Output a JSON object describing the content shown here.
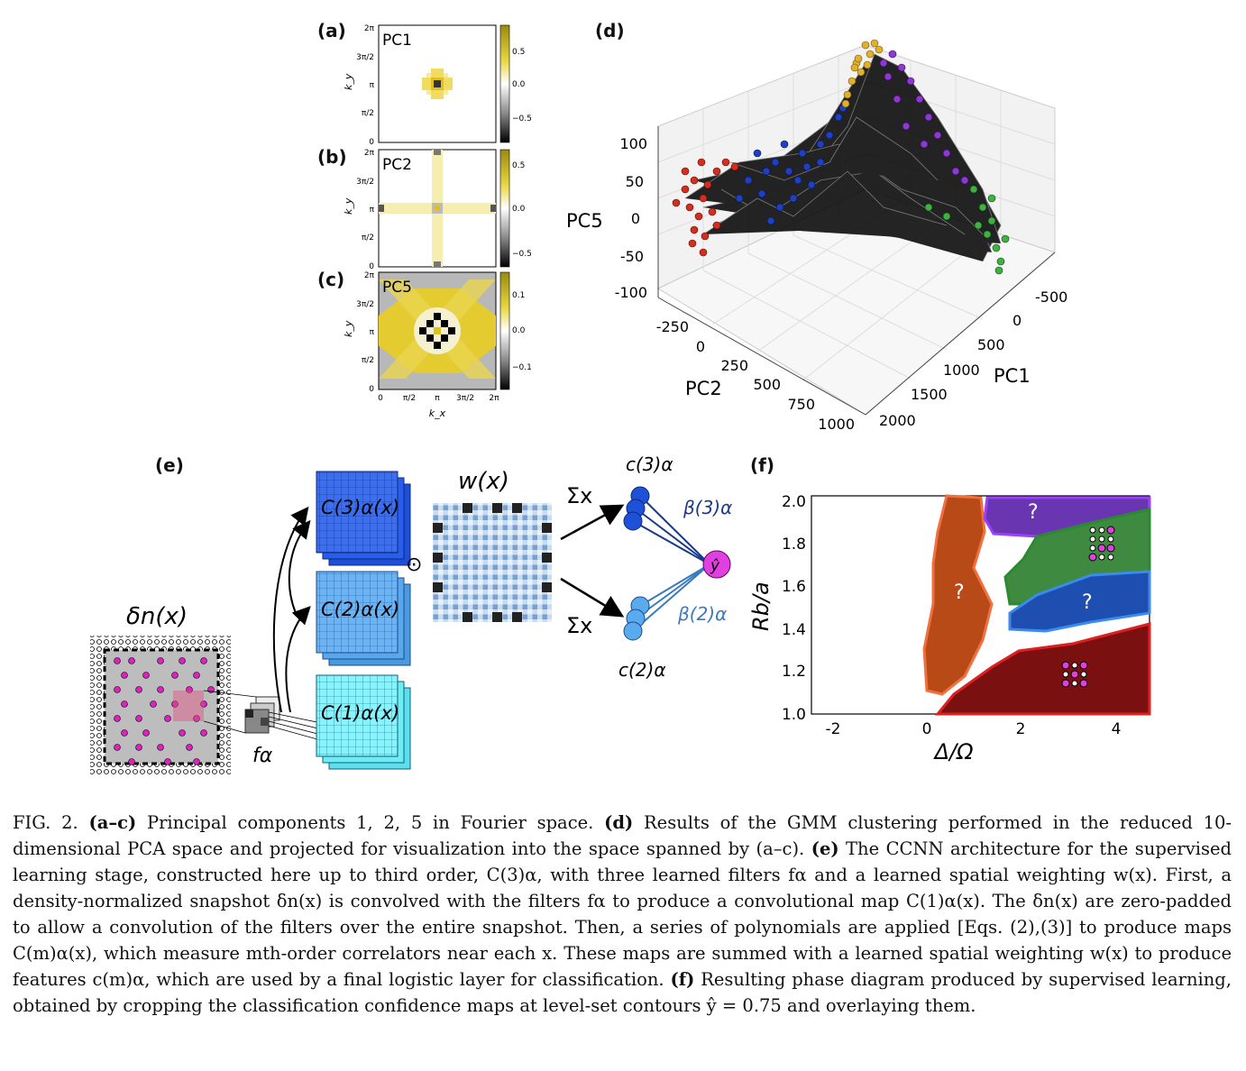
{
  "labels": {
    "a": "(a)",
    "b": "(b)",
    "c": "(c)",
    "d": "(d)",
    "e": "(e)",
    "f": "(f)"
  },
  "heatmaps": [
    {
      "title": "PC1",
      "yticks": [
        "2π",
        "3π/2",
        "π",
        "π/2",
        "0"
      ],
      "cbar": [
        "0.5",
        "0.0",
        "−0.5"
      ]
    },
    {
      "title": "PC2",
      "yticks": [
        "2π",
        "3π/2",
        "π",
        "π/2",
        "0"
      ],
      "cbar": [
        "0.5",
        "0.0",
        "−0.5"
      ]
    },
    {
      "title": "PC5",
      "yticks": [
        "2π",
        "3π/2",
        "π",
        "π/2",
        "0"
      ],
      "cbar": [
        "0.1",
        "0.0",
        "−0.1"
      ]
    }
  ],
  "heatmap_axes": {
    "ylabel": "k_y",
    "xlabel": "k_x",
    "xticks": [
      "0",
      "π/2",
      "π",
      "3π/2",
      "2π"
    ]
  },
  "scatter3d": {
    "zlabel": "PC5",
    "xlabel": "PC2",
    "ylabel": "PC1",
    "zticks": [
      "100",
      "50",
      "0",
      "-50",
      "-100"
    ],
    "pc2ticks": [
      "-250",
      "0",
      "250",
      "500",
      "750",
      "1000"
    ],
    "pc1ticks": [
      "-500",
      "0",
      "500",
      "1000",
      "1500",
      "2000"
    ],
    "colors": {
      "red": "#d03020",
      "blue": "#2040c0",
      "gold": "#e0b030",
      "purple": "#8a3ad0",
      "green": "#40b040"
    }
  },
  "ccnn": {
    "input_label": "δn(x)",
    "filter_label": "fα",
    "maps": [
      "C(3)α(x)",
      "C(2)α(x)",
      "C(1)α(x)"
    ],
    "odot": "⊙",
    "weight_label": "w(x)",
    "sum_label": "Σx",
    "feat3": "c(3)α",
    "feat2": "c(2)α",
    "beta3": "β(3)α",
    "beta2": "β(2)α",
    "out": "ŷ"
  },
  "phase": {
    "ylabel": "Rb/a",
    "xlabel": "Δ/Ω",
    "xticks": [
      "-2",
      "0",
      "2",
      "4"
    ],
    "yticks": [
      "2.0",
      "1.8",
      "1.6",
      "1.4",
      "1.2",
      "1.0"
    ],
    "q": "?",
    "colors": {
      "orange": "#c04818",
      "purple": "#6a35b0",
      "green": "#3e8a40",
      "blue": "#1e4fb0",
      "red": "#7a1010"
    }
  },
  "caption": {
    "fig": "FIG. 2.",
    "s1b": "(a–c)",
    "s1": " Principal components 1, 2, 5 in Fourier space. ",
    "s2b": "(d)",
    "s2": " Results of the GMM clustering performed in the reduced 10-dimensional PCA space and projected for visualization into the space spanned by (a–c). ",
    "s3b": "(e)",
    "s3": " The CCNN architecture for the supervised learning stage, constructed here up to third order, C(3)α, with three learned filters fα and a learned spatial weighting w(x). First, a density-normalized snapshot δn(x) is convolved with the filters fα to produce a convolutional map C(1)α(x). The δn(x) are zero-padded to allow a convolution of the filters over the entire snapshot. Then, a series of polynomials are applied [Eqs. (2),(3)] to produce maps C(m)α(x), which measure mth-order correlators near each x. These maps are summed with a learned spatial weighting w(x) to produce features c(m)α, which are used by a final logistic layer for classification. ",
    "s4b": "(f)",
    "s4": " Resulting phase diagram produced by supervised learning, obtained by cropping the classification confidence maps at level-set contours ŷ = 0.75 and overlaying them."
  }
}
